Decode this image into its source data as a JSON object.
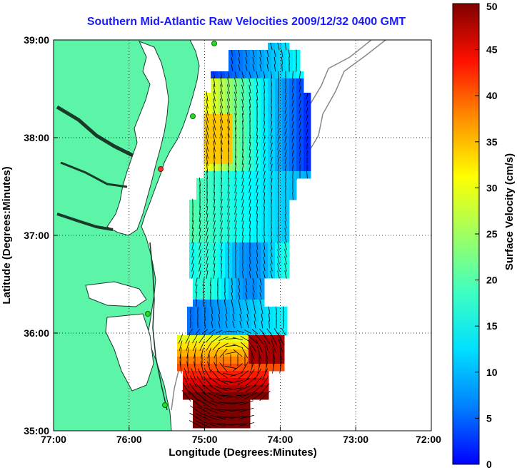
{
  "title": "Southern Mid-Atlantic Raw Velocities 2009/12/32 0400 GMT",
  "x_axis": {
    "label": "Longitude (Degrees:Minutes)",
    "ticks": [
      "77:00",
      "76:00",
      "75:00",
      "74:00",
      "73:00",
      "72:00"
    ]
  },
  "y_axis": {
    "label": "Latitude (Degrees:Minutes)",
    "ticks": [
      "39:00",
      "38:00",
      "37:00",
      "36:00",
      "35:00"
    ]
  },
  "colorbar": {
    "label": "Surface Velocity (cm/s)",
    "ticks": [
      "0",
      "5",
      "10",
      "15",
      "20",
      "25",
      "30",
      "35",
      "40",
      "45",
      "50"
    ],
    "min": 0,
    "max": 50,
    "colormap": "jet"
  },
  "colors": {
    "land": "#5cf5a8",
    "title": "#1a1aff",
    "vectors": "#000000",
    "site_markers": "#22dd22"
  },
  "extent": {
    "lon_min": -77,
    "lon_max": -72,
    "lat_min": 35,
    "lat_max": 39
  },
  "grid": true
}
